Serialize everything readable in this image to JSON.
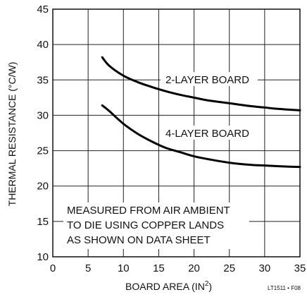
{
  "chart_data": {
    "type": "line",
    "xlabel": "BOARD AREA (IN",
    "xlabel_sup": "2",
    "xlabel_end": ")",
    "ylabel": "THERMAL RESISTANCE (°C/W)",
    "xlim": [
      0,
      35
    ],
    "ylim": [
      10,
      45
    ],
    "x_ticks": [
      "0",
      "5",
      "10",
      "15",
      "20",
      "25",
      "30",
      "35"
    ],
    "y_ticks": [
      "10",
      "15",
      "20",
      "25",
      "30",
      "35",
      "40",
      "45"
    ],
    "grid": true,
    "series": [
      {
        "name": "2-LAYER BOARD",
        "x": [
          7,
          8,
          10,
          12,
          14,
          16,
          18,
          20,
          22,
          25,
          28,
          30,
          32,
          35
        ],
        "y": [
          38.2,
          37.0,
          35.6,
          34.7,
          34.0,
          33.4,
          32.9,
          32.5,
          32.1,
          31.7,
          31.3,
          31.1,
          30.9,
          30.7
        ]
      },
      {
        "name": "4-LAYER BOARD",
        "x": [
          7,
          8,
          10,
          12,
          14,
          16,
          18,
          20,
          22,
          25,
          28,
          30,
          32,
          35
        ],
        "y": [
          31.4,
          30.6,
          28.8,
          27.4,
          26.3,
          25.4,
          24.8,
          24.2,
          23.8,
          23.3,
          23.0,
          22.9,
          22.8,
          22.7
        ]
      }
    ],
    "annotation": [
      "MEASURED FROM AIR AMBIENT",
      "TO DIE USING COPPER LANDS",
      "AS SHOWN ON DATA SHEET"
    ],
    "figure_id": "LT1511 • F08"
  }
}
